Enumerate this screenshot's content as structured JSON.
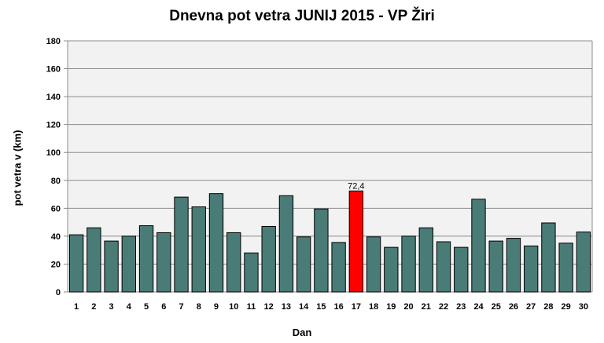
{
  "chart_data": {
    "type": "bar",
    "title": "Dnevna pot vetra JUNIJ 2015 - VP Žiri",
    "xlabel": "Dan",
    "ylabel": "pot vetra  v (km)",
    "ylim": [
      0,
      180
    ],
    "yticks": [
      0,
      20,
      40,
      60,
      80,
      100,
      120,
      140,
      160,
      180
    ],
    "grid": true,
    "categories": [
      "1",
      "2",
      "3",
      "4",
      "5",
      "6",
      "7",
      "8",
      "9",
      "10",
      "11",
      "12",
      "13",
      "14",
      "15",
      "16",
      "17",
      "18",
      "19",
      "20",
      "21",
      "22",
      "23",
      "24",
      "25",
      "26",
      "27",
      "28",
      "29",
      "30"
    ],
    "values": [
      41,
      46,
      36.5,
      40,
      47.5,
      42.5,
      68,
      61,
      70.5,
      42.5,
      28,
      47,
      69,
      39.5,
      59.5,
      35.5,
      72.4,
      39.5,
      32,
      40,
      46,
      36,
      32,
      66.5,
      36.5,
      38.5,
      33,
      49.5,
      35,
      43
    ],
    "highlight_index": 16,
    "highlight_label": "72,4",
    "colors": {
      "bar": "#4a7c77",
      "highlight": "#ff0000",
      "plot_background": "#f2f2f2",
      "grid": "#8c8c8c",
      "bar_outline": "#000000"
    }
  }
}
